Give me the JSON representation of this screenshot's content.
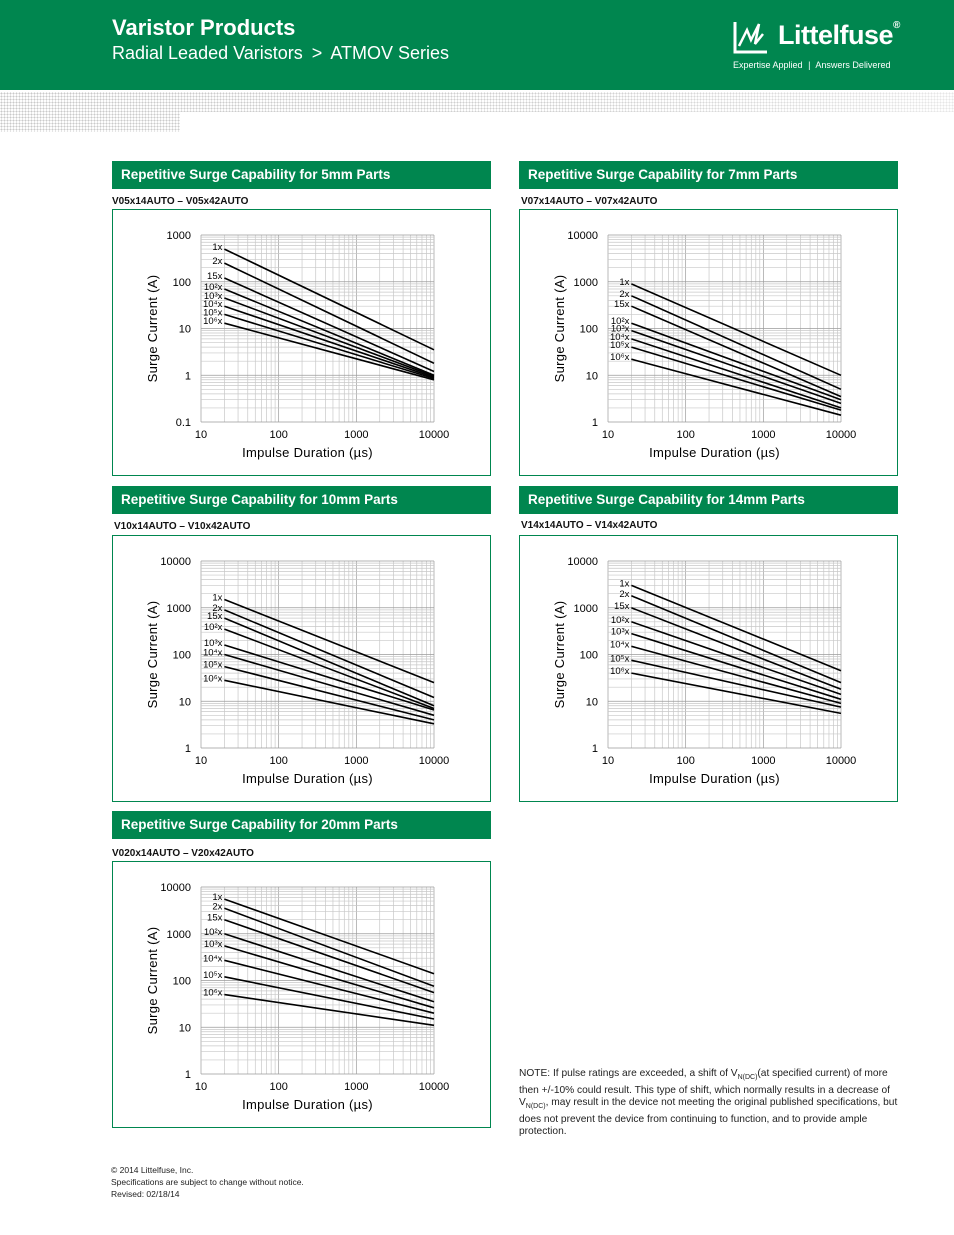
{
  "header": {
    "title": "Varistor Products",
    "subtitle_part1": "Radial Leaded Varistors",
    "subtitle_sep": ">",
    "subtitle_part2": "ATMOV Series",
    "logo_text": "Littelfuse",
    "logo_mark": "®",
    "tagline_left": "Expertise Applied",
    "tagline_sep": "|",
    "tagline_right": "Answers Delivered",
    "brand_color": "#00864f"
  },
  "chart_data": [
    {
      "type": "line",
      "title": "Repetitive Surge Capability for 5mm Parts",
      "subtitle": "V05x14AUTO – V05x42AUTO",
      "xlabel": "Impulse Duration (µs)",
      "ylabel": "Surge Current (A)",
      "x_scale": "log",
      "y_scale": "log",
      "xlim": [
        10,
        10000
      ],
      "ylim": [
        0.1,
        1000
      ],
      "xticks": [
        "10",
        "100",
        "1000",
        "10000"
      ],
      "yticks": [
        "0.1",
        "1",
        "10",
        "100",
        "1000"
      ],
      "grid": true,
      "series": [
        {
          "name": "1x",
          "x": [
            20,
            10000
          ],
          "y": [
            500,
            3.5
          ]
        },
        {
          "name": "2x",
          "x": [
            20,
            10000
          ],
          "y": [
            250,
            1.8
          ]
        },
        {
          "name": "15x",
          "x": [
            20,
            10000
          ],
          "y": [
            120,
            1.2
          ]
        },
        {
          "name": "10²x",
          "x": [
            20,
            10000
          ],
          "y": [
            70,
            1.0
          ]
        },
        {
          "name": "10³x",
          "x": [
            20,
            10000
          ],
          "y": [
            45,
            0.95
          ]
        },
        {
          "name": "10⁴x",
          "x": [
            20,
            10000
          ],
          "y": [
            30,
            0.9
          ]
        },
        {
          "name": "10⁵x",
          "x": [
            20,
            10000
          ],
          "y": [
            20,
            0.85
          ]
        },
        {
          "name": "10⁶x",
          "x": [
            20,
            10000
          ],
          "y": [
            13,
            0.8
          ]
        }
      ]
    },
    {
      "type": "line",
      "title": "Repetitive Surge Capability for 7mm Parts",
      "subtitle": "V07x14AUTO – V07x42AUTO",
      "xlabel": "Impulse Duration (µs)",
      "ylabel": "Surge Current (A)",
      "x_scale": "log",
      "y_scale": "log",
      "xlim": [
        10,
        10000
      ],
      "ylim": [
        1,
        10000
      ],
      "xticks": [
        "10",
        "100",
        "1000",
        "10000"
      ],
      "yticks": [
        "1",
        "10",
        "100",
        "1000",
        "10000"
      ],
      "grid": true,
      "series": [
        {
          "name": "1x",
          "x": [
            20,
            10000
          ],
          "y": [
            900,
            10
          ]
        },
        {
          "name": "2x",
          "x": [
            20,
            10000
          ],
          "y": [
            500,
            5
          ]
        },
        {
          "name": "15x",
          "x": [
            20,
            10000
          ],
          "y": [
            300,
            3.5
          ]
        },
        {
          "name": "10²x",
          "x": [
            20,
            10000
          ],
          "y": [
            130,
            3
          ]
        },
        {
          "name": "10³x",
          "x": [
            20,
            10000
          ],
          "y": [
            90,
            2.5
          ]
        },
        {
          "name": "10⁴x",
          "x": [
            20,
            10000
          ],
          "y": [
            60,
            2
          ]
        },
        {
          "name": "10⁵x",
          "x": [
            20,
            10000
          ],
          "y": [
            40,
            1.8
          ]
        },
        {
          "name": "10⁶x",
          "x": [
            20,
            10000
          ],
          "y": [
            22,
            1.4
          ]
        }
      ]
    },
    {
      "type": "line",
      "title": "Repetitive Surge Capability for 10mm Parts",
      "subtitle": "V10x14AUTO – V10x42AUTO",
      "xlabel": "Impulse Duration (µs)",
      "ylabel": "Surge Current (A)",
      "x_scale": "log",
      "y_scale": "log",
      "xlim": [
        10,
        10000
      ],
      "ylim": [
        1,
        10000
      ],
      "xticks": [
        "10",
        "100",
        "1000",
        "10000"
      ],
      "yticks": [
        "1",
        "10",
        "100",
        "1000",
        "10000"
      ],
      "grid": true,
      "series": [
        {
          "name": "1x",
          "x": [
            20,
            10000
          ],
          "y": [
            1500,
            25
          ]
        },
        {
          "name": "2x",
          "x": [
            20,
            10000
          ],
          "y": [
            900,
            12
          ]
        },
        {
          "name": "15x",
          "x": [
            20,
            10000
          ],
          "y": [
            600,
            8
          ]
        },
        {
          "name": "10²x",
          "x": [
            20,
            10000
          ],
          "y": [
            350,
            7
          ]
        },
        {
          "name": "10³x",
          "x": [
            20,
            10000
          ],
          "y": [
            160,
            6.5
          ]
        },
        {
          "name": "10⁴x",
          "x": [
            20,
            10000
          ],
          "y": [
            100,
            5
          ]
        },
        {
          "name": "10⁵x",
          "x": [
            20,
            10000
          ],
          "y": [
            55,
            4
          ]
        },
        {
          "name": "10⁶x",
          "x": [
            20,
            10000
          ],
          "y": [
            28,
            3.3
          ]
        }
      ]
    },
    {
      "type": "line",
      "title": "Repetitive Surge Capability for 14mm Parts",
      "subtitle": "V14x14AUTO – V14x42AUTO",
      "xlabel": "Impulse Duration (µs)",
      "ylabel": "Surge Current (A)",
      "x_scale": "log",
      "y_scale": "log",
      "xlim": [
        10,
        10000
      ],
      "ylim": [
        1,
        10000
      ],
      "xticks": [
        "10",
        "100",
        "1000",
        "10000"
      ],
      "yticks": [
        "1",
        "10",
        "100",
        "1000",
        "10000"
      ],
      "grid": true,
      "series": [
        {
          "name": "1x",
          "x": [
            20,
            10000
          ],
          "y": [
            3000,
            45
          ]
        },
        {
          "name": "2x",
          "x": [
            20,
            10000
          ],
          "y": [
            1800,
            25
          ]
        },
        {
          "name": "15x",
          "x": [
            20,
            10000
          ],
          "y": [
            1000,
            18
          ]
        },
        {
          "name": "10²x",
          "x": [
            20,
            10000
          ],
          "y": [
            500,
            14
          ]
        },
        {
          "name": "10³x",
          "x": [
            20,
            10000
          ],
          "y": [
            280,
            11
          ]
        },
        {
          "name": "10⁴x",
          "x": [
            20,
            10000
          ],
          "y": [
            150,
            9
          ]
        },
        {
          "name": "10⁵x",
          "x": [
            20,
            10000
          ],
          "y": [
            75,
            7.5
          ]
        },
        {
          "name": "10⁶x",
          "x": [
            20,
            10000
          ],
          "y": [
            40,
            5.5
          ]
        }
      ]
    },
    {
      "type": "line",
      "title": "Repetitive Surge Capability for 20mm Parts",
      "subtitle": "V020x14AUTO – V20x42AUTO",
      "xlabel": "Impulse Duration (µs)",
      "ylabel": "Surge Current (A)",
      "x_scale": "log",
      "y_scale": "log",
      "xlim": [
        10,
        10000
      ],
      "ylim": [
        1,
        10000
      ],
      "xticks": [
        "10",
        "100",
        "1000",
        "10000"
      ],
      "yticks": [
        "1",
        "10",
        "100",
        "1000",
        "10000"
      ],
      "grid": true,
      "series": [
        {
          "name": "1x",
          "x": [
            20,
            10000
          ],
          "y": [
            5500,
            140
          ]
        },
        {
          "name": "2x",
          "x": [
            20,
            10000
          ],
          "y": [
            3500,
            75
          ]
        },
        {
          "name": "15x",
          "x": [
            20,
            10000
          ],
          "y": [
            2000,
            55
          ]
        },
        {
          "name": "10²x",
          "x": [
            20,
            10000
          ],
          "y": [
            1000,
            35
          ]
        },
        {
          "name": "10³x",
          "x": [
            20,
            10000
          ],
          "y": [
            550,
            26
          ]
        },
        {
          "name": "10⁴x",
          "x": [
            20,
            10000
          ],
          "y": [
            270,
            20
          ]
        },
        {
          "name": "10⁵x",
          "x": [
            20,
            10000
          ],
          "y": [
            120,
            15
          ]
        },
        {
          "name": "10⁶x",
          "x": [
            20,
            10000
          ],
          "y": [
            50,
            11
          ]
        }
      ]
    }
  ],
  "note": {
    "p1": "NOTE: If pulse ratings are exceeded, a shift of V",
    "sub1": "N(DC)",
    "p2": "(at specified current) of more then +/-10% could result. This type of shift, which normally results in a decrease of V",
    "sub2": "N(DC)",
    "p3": ", may result in the device not meeting the original published specifications, but does not prevent the device from continuing to function, and to provide ample protection."
  },
  "footer": {
    "copyright": "© 2014 Littelfuse, Inc.",
    "disclaimer": "Specifications are subject to change without notice.",
    "revised": "Revised: 02/18/14"
  }
}
